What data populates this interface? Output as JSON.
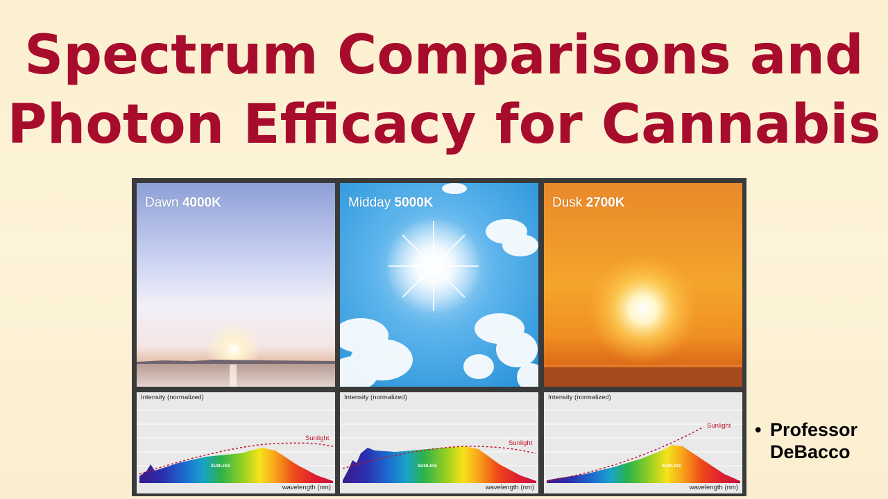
{
  "slide": {
    "title_line1": "Spectrum Comparisons and",
    "title_line2": "Photon Efficacy for Cannabis",
    "author_bullet": "•",
    "author_line1": "Professor",
    "author_line2": "DeBacco"
  },
  "panels": [
    {
      "label_prefix": "Dawn",
      "label_temp": "4000K",
      "y_axis": "Intensity",
      "y_axis_note": "(normalized)",
      "x_axis": "wavelength (nm)",
      "reference": "Sunlight",
      "product": "SUNLIKE"
    },
    {
      "label_prefix": "Midday",
      "label_temp": "5000K",
      "y_axis": "Intensity",
      "y_axis_note": "(normalized)",
      "x_axis": "wavelength (nm)",
      "reference": "Sunlight",
      "product": "SUNLIKE"
    },
    {
      "label_prefix": "Dusk",
      "label_temp": "2700K",
      "y_axis": "Intensity",
      "y_axis_note": "(normalized)",
      "x_axis": "wavelength (nm)",
      "reference": "Sunlight",
      "product": "SUNLIKE"
    }
  ],
  "colors": {
    "title": "#a80c2c",
    "sunlight_curve": "#c0142c"
  }
}
